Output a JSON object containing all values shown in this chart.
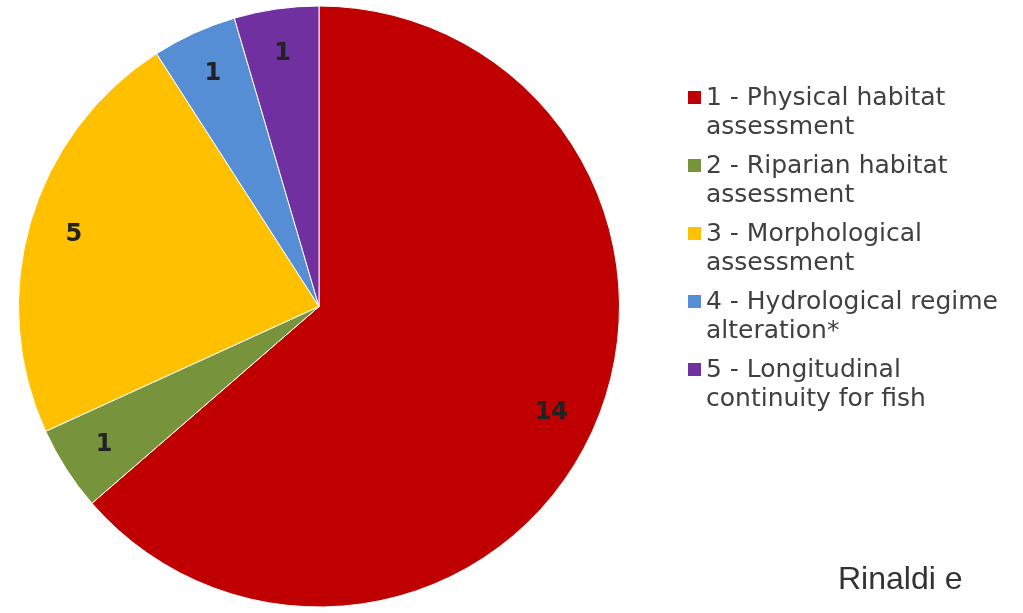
{
  "chart_data": {
    "type": "pie",
    "categories": [
      "1 - Physical habitat assessment",
      "2 - Riparian habitat assessment",
      "3 - Morphological assessment",
      "4 - Hydrological regime alteration*",
      "5 - Longitudinal continuity for fish"
    ],
    "values": [
      14,
      1,
      5,
      1,
      1
    ],
    "colors": [
      "#c00000",
      "#77933c",
      "#ffc000",
      "#558ed5",
      "#7030a0"
    ],
    "data_labels": true,
    "legend": "right",
    "annotations": [
      "Rinaldi e"
    ]
  }
}
